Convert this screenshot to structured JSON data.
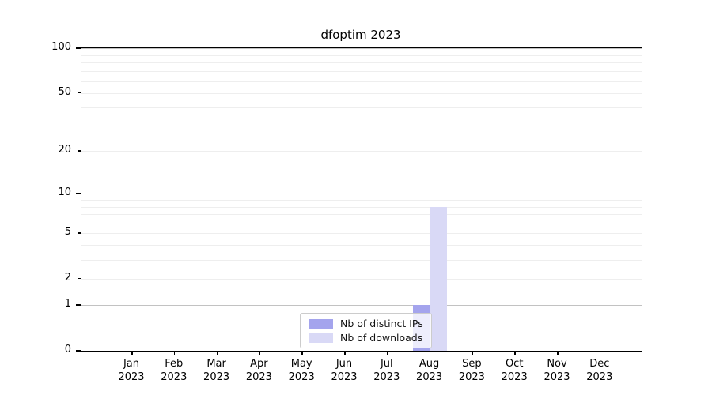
{
  "chart_data": {
    "type": "bar",
    "title": "dfoptim 2023",
    "categories": [
      "Jan",
      "Feb",
      "Mar",
      "Apr",
      "May",
      "Jun",
      "Jul",
      "Aug",
      "Sep",
      "Oct",
      "Nov",
      "Dec"
    ],
    "category_year": "2023",
    "series": [
      {
        "name": "Nb of distinct IPs",
        "color": "#a4a4ed",
        "values": [
          0,
          0,
          0,
          0,
          0,
          0,
          0,
          1,
          0,
          0,
          0,
          0
        ]
      },
      {
        "name": "Nb of downloads",
        "color": "#d9d9f6",
        "values": [
          0,
          0,
          0,
          0,
          0,
          0,
          0,
          8,
          0,
          0,
          0,
          0
        ]
      }
    ],
    "yscale": "log1p",
    "ylim": [
      0,
      100
    ],
    "ytick_labels": [
      0,
      1,
      2,
      5,
      10,
      20,
      50,
      100
    ],
    "ymajor_ticks": [
      0,
      1,
      10,
      100
    ],
    "yminor_gridlines": [
      2,
      3,
      4,
      5,
      6,
      7,
      8,
      9,
      20,
      30,
      40,
      50,
      60,
      70,
      80,
      90
    ],
    "grid": true,
    "legend_position": "bottom-center-inside",
    "colors": {
      "major_grid": "#c2c2c2",
      "minor_grid": "#eeeeee",
      "spine": "#000000",
      "text": "#000000",
      "background": "#ffffff"
    }
  }
}
